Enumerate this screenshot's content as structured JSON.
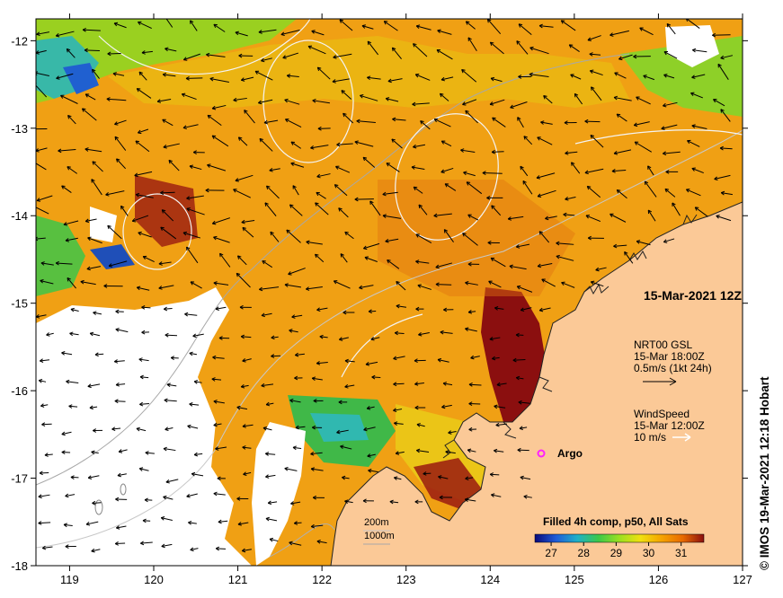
{
  "map": {
    "x_ticks": [
      "119",
      "120",
      "121",
      "122",
      "123",
      "124",
      "125",
      "126",
      "127"
    ],
    "y_ticks": [
      "-12",
      "-13",
      "-14",
      "-15",
      "-16",
      "-17",
      "-18"
    ],
    "lon_range": [
      118.6,
      127
    ],
    "lat_range": [
      -18,
      -11.75
    ]
  },
  "labels": {
    "date": "15-Mar-2021 12Z",
    "current_title": "NRT00 GSL",
    "current_time": "15-Mar 18:00Z",
    "current_scale": "0.5m/s (1kt 24h)",
    "wind_title": "WindSpeed",
    "wind_time": "15-Mar 12:00Z",
    "wind_scale": "10 m/s",
    "argo": "Argo",
    "depth_200": "200m",
    "depth_1000": "1000m",
    "colorbar_title": "Filled 4h comp, p50, All Sats",
    "credit": "© IMOS 19-Mar-2021 12:18 Hobart"
  },
  "colorbar": {
    "ticks": [
      "27",
      "28",
      "29",
      "30",
      "31"
    ],
    "range": [
      26.5,
      31.7
    ],
    "colors": [
      "#0a0a7a",
      "#1f5cd8",
      "#1fb0c8",
      "#3cc84a",
      "#9be020",
      "#f0e010",
      "#f5a300",
      "#e86a00",
      "#8b0f0f"
    ]
  },
  "colors": {
    "land": "#fbc997",
    "sst_warm": "#f09a14",
    "sst_hot": "#8b0f0f",
    "argo_marker": "#ff22ff"
  }
}
